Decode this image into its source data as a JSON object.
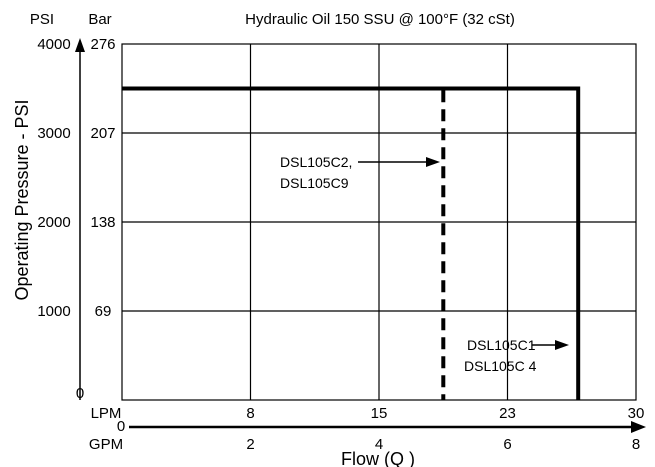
{
  "chart_data": {
    "type": "line",
    "title": "Hydraulic Oil 150 SSU @ 100°F (32 cSt)",
    "y_units": {
      "left": "PSI",
      "right": "Bar"
    },
    "ylabel": "Operating Pressure - PSI",
    "xlabel": "Flow (Q )",
    "ylim": [
      0,
      4000
    ],
    "xlim": [
      0,
      8
    ],
    "grid": true,
    "psi_ticks": [
      "4000",
      "3000",
      "2000",
      "1000",
      "0"
    ],
    "psi_values": [
      4000,
      3000,
      2000,
      1000,
      0
    ],
    "bar_ticks": [
      "276",
      "207",
      "138",
      "69"
    ],
    "lpm_unit": "LPM",
    "lpm_ticks": [
      "8",
      "15",
      "23",
      "30"
    ],
    "lpm_values": [
      2,
      4,
      6,
      8
    ],
    "gpm_unit": "GPM",
    "gpm_zero": "0",
    "gpm_ticks": [
      "2",
      "4",
      "6",
      "8"
    ],
    "gpm_values": [
      2,
      4,
      6,
      8
    ],
    "series": [
      {
        "line_style": "dashed",
        "points": [
          [
            0,
            3500
          ],
          [
            5,
            3500
          ],
          [
            5,
            0
          ]
        ],
        "labels": [
          "DSL105C2,",
          "DSL105C9"
        ]
      },
      {
        "line_style": "solid",
        "points": [
          [
            0,
            3500
          ],
          [
            7.1,
            3500
          ],
          [
            7.1,
            0
          ]
        ],
        "labels": [
          "DSL105C1",
          "DSL105C 4"
        ]
      }
    ]
  }
}
